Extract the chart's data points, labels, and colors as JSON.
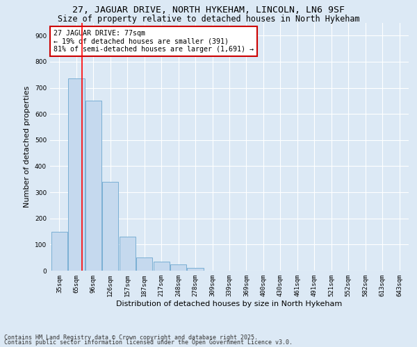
{
  "title": "27, JAGUAR DRIVE, NORTH HYKEHAM, LINCOLN, LN6 9SF",
  "subtitle": "Size of property relative to detached houses in North Hykeham",
  "xlabel": "Distribution of detached houses by size in North Hykeham",
  "ylabel": "Number of detached properties",
  "categories": [
    "35sqm",
    "65sqm",
    "96sqm",
    "126sqm",
    "157sqm",
    "187sqm",
    "217sqm",
    "248sqm",
    "278sqm",
    "309sqm",
    "339sqm",
    "369sqm",
    "400sqm",
    "430sqm",
    "461sqm",
    "491sqm",
    "521sqm",
    "552sqm",
    "582sqm",
    "613sqm",
    "643sqm"
  ],
  "values": [
    150,
    735,
    650,
    340,
    130,
    50,
    35,
    25,
    10,
    0,
    0,
    0,
    0,
    0,
    0,
    0,
    0,
    0,
    0,
    0,
    0
  ],
  "bar_color": "#c5d9ee",
  "bar_edge_color": "#7aafd4",
  "red_line_x": 1.35,
  "annotation_line1": "27 JAGUAR DRIVE: 77sqm",
  "annotation_line2": "← 19% of detached houses are smaller (391)",
  "annotation_line3": "81% of semi-detached houses are larger (1,691) →",
  "annotation_box_color": "#ffffff",
  "annotation_box_edge": "#cc0000",
  "footer1": "Contains HM Land Registry data © Crown copyright and database right 2025.",
  "footer2": "Contains public sector information licensed under the Open Government Licence v3.0.",
  "ylim": [
    0,
    950
  ],
  "yticks": [
    0,
    100,
    200,
    300,
    400,
    500,
    600,
    700,
    800,
    900
  ],
  "plot_bg": "#dce9f5",
  "fig_bg": "#dce9f5",
  "grid_color": "#ffffff",
  "title_fontsize": 9.5,
  "subtitle_fontsize": 8.5,
  "annotation_fontsize": 7.2,
  "axis_label_fontsize": 8,
  "tick_fontsize": 6.5,
  "footer_fontsize": 6
}
